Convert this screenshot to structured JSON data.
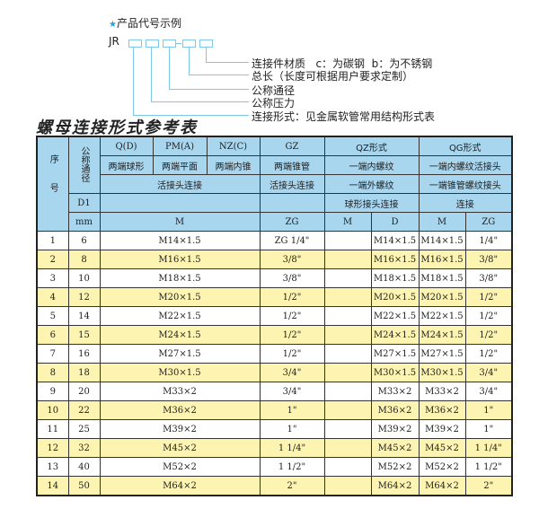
{
  "code_example": {
    "title": "产品代号示例",
    "prefix": "JR",
    "labels": [
      "连接件材质   c：为碳钢  b：为不锈钢",
      "总长（长度可根据用户要求定制）",
      "公称通径",
      "公称压力",
      "连接形式：见金属软管常用结构形式表"
    ]
  },
  "table_title": "螺母连接形式参考表",
  "colors": {
    "header_bg": "#a8d6ef",
    "alt_row_bg": "#fdf4b2",
    "diagram_line": "#7cc8e6",
    "star": "#2a9fd6"
  },
  "header": {
    "seq": "序号",
    "nominal": "公称通径",
    "d1": "D1",
    "mm": "mm",
    "q": "Q(D)",
    "pm": "PM(A)",
    "nz": "NZ(C)",
    "gz": "GZ",
    "qz": "QZ形式",
    "qg": "QG形式",
    "q_desc": "两端球形",
    "pm_desc": "两端平面",
    "nz_desc": "两端内锥",
    "gz_desc": "两端锥管",
    "qz_desc1": "一端内螺纹",
    "qg_desc1": "一端内螺纹活接头",
    "union_conn": "活接头连接",
    "gz_conn": "活接头连接",
    "qz_desc2": "一端外螺纹",
    "qg_desc2": "一端锥管螺纹接头",
    "qz_desc3": "球形接头连接",
    "qg_desc3": "连接",
    "m": "M",
    "zg": "ZG",
    "qz_m": "M",
    "qz_d": "D",
    "qg_m": "M",
    "qg_zg": "ZG"
  },
  "rows": [
    {
      "no": "1",
      "dn": "6",
      "m": "M14×1.5",
      "zg": "ZG 1/4\"",
      "qz_m": "",
      "qz_d": "M14×1.5",
      "qg_m": "M14×1.5",
      "qg_zg": "1/4\""
    },
    {
      "no": "2",
      "dn": "8",
      "m": "M16×1.5",
      "zg": "3/8\"",
      "qz_m": "",
      "qz_d": "M16×1.5",
      "qg_m": "M16×1.5",
      "qg_zg": "3/8\""
    },
    {
      "no": "3",
      "dn": "10",
      "m": "M18×1.5",
      "zg": "3/8\"",
      "qz_m": "",
      "qz_d": "M18×1.5",
      "qg_m": "M18×1.5",
      "qg_zg": "3/8\""
    },
    {
      "no": "4",
      "dn": "12",
      "m": "M20×1.5",
      "zg": "1/2\"",
      "qz_m": "",
      "qz_d": "M20×1.5",
      "qg_m": "M20×1.5",
      "qg_zg": "1/2\""
    },
    {
      "no": "5",
      "dn": "14",
      "m": "M22×1.5",
      "zg": "1/2\"",
      "qz_m": "",
      "qz_d": "M22×1.5",
      "qg_m": "M22×1.5",
      "qg_zg": "1/2\""
    },
    {
      "no": "6",
      "dn": "15",
      "m": "M24×1.5",
      "zg": "1/2\"",
      "qz_m": "",
      "qz_d": "M24×1.5",
      "qg_m": "M24×1.5",
      "qg_zg": "1/2\""
    },
    {
      "no": "7",
      "dn": "16",
      "m": "M27×1.5",
      "zg": "1/2\"",
      "qz_m": "",
      "qz_d": "M27×1.5",
      "qg_m": "M27×1.5",
      "qg_zg": "1/2\""
    },
    {
      "no": "8",
      "dn": "18",
      "m": "M30×1.5",
      "zg": "3/4\"",
      "qz_m": "",
      "qz_d": "M30×1.5",
      "qg_m": "M30×1.5",
      "qg_zg": "3/4\""
    },
    {
      "no": "9",
      "dn": "20",
      "m": "M33×2",
      "zg": "3/4\"",
      "qz_m": "",
      "qz_d": "M33×2",
      "qg_m": "M33×2",
      "qg_zg": "3/4\""
    },
    {
      "no": "10",
      "dn": "22",
      "m": "M36×2",
      "zg": "1\"",
      "qz_m": "",
      "qz_d": "M36×2",
      "qg_m": "M36×2",
      "qg_zg": "1\""
    },
    {
      "no": "11",
      "dn": "25",
      "m": "M39×2",
      "zg": "1\"",
      "qz_m": "",
      "qz_d": "M39×2",
      "qg_m": "M39×2",
      "qg_zg": "1\""
    },
    {
      "no": "12",
      "dn": "32",
      "m": "M45×2",
      "zg": "1 1/4\"",
      "qz_m": "",
      "qz_d": "M45×2",
      "qg_m": "M45×2",
      "qg_zg": "1 1/4\""
    },
    {
      "no": "13",
      "dn": "40",
      "m": "M52×2",
      "zg": "1 1/2\"",
      "qz_m": "",
      "qz_d": "M52×2",
      "qg_m": "M52×2",
      "qg_zg": "1 1/2\""
    },
    {
      "no": "14",
      "dn": "50",
      "m": "M64×2",
      "zg": "2\"",
      "qz_m": "",
      "qz_d": "M64×2",
      "qg_m": "M64×2",
      "qg_zg": "2\""
    }
  ]
}
